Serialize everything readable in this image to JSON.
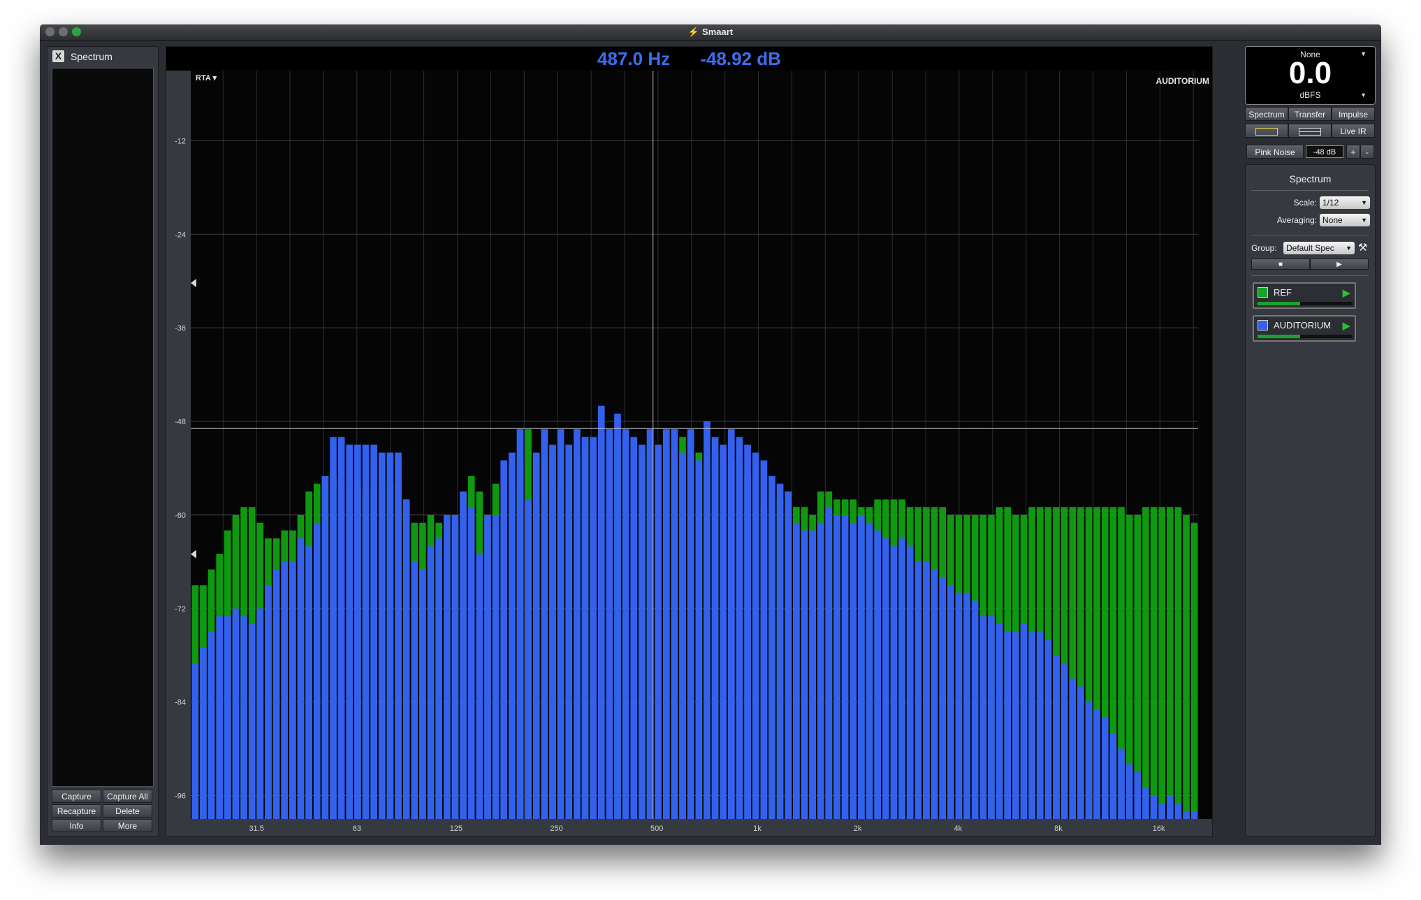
{
  "window": {
    "title": "Smaart"
  },
  "left_panel": {
    "title": "Spectrum",
    "close_label": "X",
    "buttons": [
      "Capture",
      "Capture All",
      "Recapture",
      "Delete",
      "Info",
      "More"
    ]
  },
  "readout": {
    "frequency": "487.0 Hz",
    "level": "-48.92 dB"
  },
  "plot": {
    "mode_label": "RTA ▾",
    "trace_name": "AUDITORIUM"
  },
  "chart_data": {
    "type": "bar",
    "title": "",
    "xlabel": "",
    "ylabel": "",
    "x_scale": "log",
    "x_range_hz": [
      20,
      21000
    ],
    "ylim": [
      -99,
      -3
    ],
    "y_ticks": [
      -12,
      -24,
      -36,
      -48,
      -60,
      -72,
      -84,
      -96
    ],
    "x_ticks": [
      {
        "label": "31.5",
        "hz": 31.5
      },
      {
        "label": "63",
        "hz": 63
      },
      {
        "label": "125",
        "hz": 125
      },
      {
        "label": "250",
        "hz": 250
      },
      {
        "label": "500",
        "hz": 500
      },
      {
        "label": "1k",
        "hz": 1000
      },
      {
        "label": "2k",
        "hz": 2000
      },
      {
        "label": "4k",
        "hz": 4000
      },
      {
        "label": "8k",
        "hz": 8000
      },
      {
        "label": "16k",
        "hz": 16000
      }
    ],
    "resolution": "1/12 octave",
    "grid": true,
    "cursor": {
      "hz": 487,
      "db": -48.92
    },
    "series": [
      {
        "color": "#0e9910",
        "values": [
          -69,
          -69,
          -67,
          -65,
          -62,
          -60,
          -59,
          -59,
          -61,
          -63,
          -63,
          -62,
          -62,
          -60,
          -57,
          -56,
          -55,
          -55,
          -56,
          -56,
          -56,
          -57,
          -56,
          -56,
          -56,
          -56,
          -58,
          -61,
          -61,
          -60,
          -61,
          -60,
          -61,
          -57,
          -55,
          -57,
          -61,
          -56,
          -60,
          -56,
          -53,
          -49,
          -58,
          -53,
          -52,
          -56,
          -51,
          -52,
          -50,
          -51,
          -51,
          -49,
          -50,
          -50,
          -51,
          -52,
          -51,
          -55,
          -51,
          -52,
          -50,
          -50,
          -52,
          -54,
          -52,
          -52,
          -53,
          -53,
          -55,
          -56,
          -59,
          -60,
          -58,
          -59,
          -59,
          -59,
          -60,
          -57,
          -57,
          -58,
          -58,
          -58,
          -59,
          -59,
          -58,
          -58,
          -58,
          -58,
          -59,
          -59,
          -59,
          -59,
          -59,
          -60,
          -60,
          -60,
          -60,
          -60,
          -60,
          -59,
          -59,
          -60,
          -60,
          -59,
          -59,
          -59,
          -59,
          -59,
          -59,
          -59,
          -59,
          -59,
          -59,
          -59,
          -59,
          -60,
          -60,
          -59,
          -59,
          -59,
          -59,
          -59,
          -60,
          -61
        ]
      },
      {
        "color": "#3361ee",
        "values": [
          -79,
          -77,
          -75,
          -73,
          -73,
          -72,
          -73,
          -74,
          -72,
          -69,
          -67,
          -66,
          -66,
          -63,
          -64,
          -61,
          -55,
          -50,
          -50,
          -51,
          -51,
          -51,
          -51,
          -52,
          -52,
          -52,
          -58,
          -66,
          -67,
          -64,
          -63,
          -60,
          -60,
          -57,
          -59,
          -65,
          -60,
          -60,
          -53,
          -52,
          -49,
          -58,
          -52,
          -49,
          -51,
          -49,
          -51,
          -49,
          -50,
          -50,
          -46,
          -49,
          -47,
          -49,
          -50,
          -51,
          -49,
          -51,
          -49,
          -49,
          -52,
          -49,
          -53,
          -48,
          -50,
          -51,
          -49,
          -50,
          -51,
          -52,
          -53,
          -55,
          -56,
          -57,
          -61,
          -62,
          -62,
          -61,
          -59,
          -60,
          -60,
          -61,
          -60,
          -61,
          -62,
          -63,
          -64,
          -63,
          -64,
          -66,
          -66,
          -67,
          -68,
          -69,
          -70,
          -70,
          -71,
          -73,
          -73,
          -74,
          -75,
          -75,
          -74,
          -75,
          -75,
          -76,
          -78,
          -79,
          -81,
          -82,
          -84,
          -85,
          -86,
          -88,
          -90,
          -92,
          -93,
          -95,
          -96,
          -97,
          -96,
          -97,
          -98,
          -98
        ]
      }
    ]
  },
  "meter": {
    "source": "None",
    "value": "0.0",
    "unit": "dBFS"
  },
  "mode_tabs": [
    "Spectrum",
    "Transfer",
    "Impulse"
  ],
  "live_ir_label": "Live IR",
  "generator": {
    "label": "Pink Noise",
    "level": "-48 dB",
    "plus": "+",
    "minus": "-"
  },
  "controls": {
    "title": "Spectrum",
    "scale_label": "Scale:",
    "scale_value": "1/12",
    "averaging_label": "Averaging:",
    "averaging_value": "None",
    "group_label": "Group:",
    "group_value": "Default Spec"
  },
  "measurements": [
    {
      "name": "REF",
      "color": "#1aa32a",
      "level": 0.45
    },
    {
      "name": "AUDITORIUM",
      "color": "#3361ee",
      "level": 0.45
    }
  ],
  "colors": {
    "accent": "#3b6ef0",
    "ref": "#0e9910",
    "auditorium": "#3361ee"
  }
}
